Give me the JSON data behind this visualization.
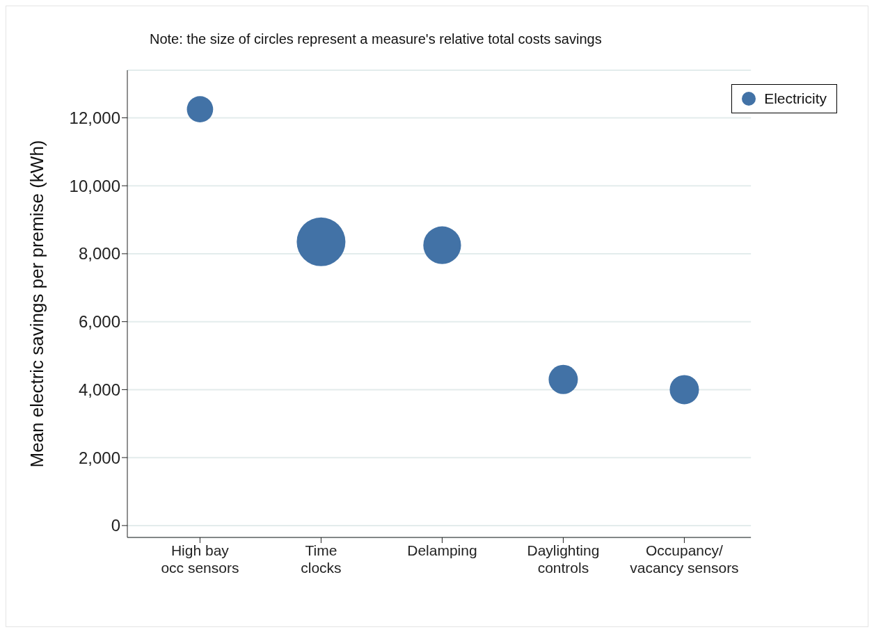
{
  "chart_data": {
    "type": "bubble",
    "title": "Note: the size of circles represent a measure's relative total costs savings",
    "ylabel": "Mean electric savings per premise (kWh)",
    "categories": [
      "High bay\nocc sensors",
      "Time\nclocks",
      "Delamping",
      "Daylighting\ncontrols",
      "Occupancy/\nvacancy sensors"
    ],
    "series": [
      {
        "name": "Electricity",
        "color": "#4272a6",
        "values": [
          12250,
          8350,
          8250,
          4300,
          4000
        ],
        "sizes": [
          0.29,
          1,
          0.6,
          0.36,
          0.36
        ]
      }
    ],
    "ylim": [
      -350,
      13400
    ],
    "yticks": [
      0,
      {
        "value": 2000,
        "label": "2,000"
      },
      {
        "value": 4000,
        "label": "4,000"
      },
      {
        "value": 6000,
        "label": "6,000"
      },
      {
        "value": 8000,
        "label": "8,000"
      },
      {
        "value": 10000,
        "label": "10,000"
      },
      {
        "value": 12000,
        "label": "12,000"
      }
    ],
    "grid": "y",
    "legend": "top right"
  }
}
